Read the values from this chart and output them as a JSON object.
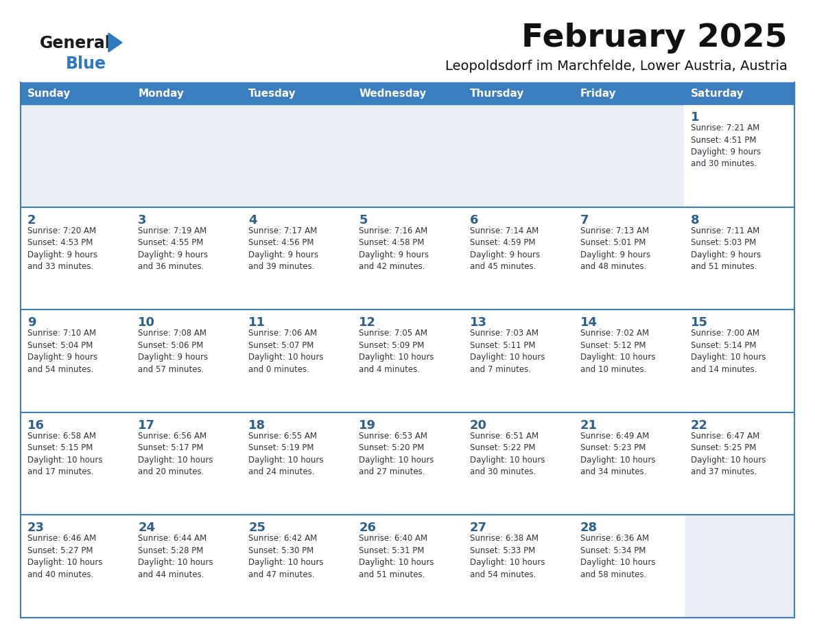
{
  "title": "February 2025",
  "subtitle": "Leopoldsdorf im Marchfelde, Lower Austria, Austria",
  "days_of_week": [
    "Sunday",
    "Monday",
    "Tuesday",
    "Wednesday",
    "Thursday",
    "Friday",
    "Saturday"
  ],
  "header_bg": "#3a7ebf",
  "header_text": "#ffffff",
  "row_bg_light": "#e8eef4",
  "row_bg_white": "#ffffff",
  "cell_border_color": "#3a7ebf",
  "day_num_color": "#2c5f8a",
  "info_color": "#333333",
  "title_color": "#111111",
  "subtitle_color": "#111111",
  "logo_general_color": "#1a1a1a",
  "logo_blue_color": "#2e7abf",
  "calendar_data": [
    [
      null,
      null,
      null,
      null,
      null,
      null,
      {
        "day": "1",
        "sunrise": "7:21 AM",
        "sunset": "4:51 PM",
        "daylight": "9 hours\nand 30 minutes."
      }
    ],
    [
      {
        "day": "2",
        "sunrise": "7:20 AM",
        "sunset": "4:53 PM",
        "daylight": "9 hours\nand 33 minutes."
      },
      {
        "day": "3",
        "sunrise": "7:19 AM",
        "sunset": "4:55 PM",
        "daylight": "9 hours\nand 36 minutes."
      },
      {
        "day": "4",
        "sunrise": "7:17 AM",
        "sunset": "4:56 PM",
        "daylight": "9 hours\nand 39 minutes."
      },
      {
        "day": "5",
        "sunrise": "7:16 AM",
        "sunset": "4:58 PM",
        "daylight": "9 hours\nand 42 minutes."
      },
      {
        "day": "6",
        "sunrise": "7:14 AM",
        "sunset": "4:59 PM",
        "daylight": "9 hours\nand 45 minutes."
      },
      {
        "day": "7",
        "sunrise": "7:13 AM",
        "sunset": "5:01 PM",
        "daylight": "9 hours\nand 48 minutes."
      },
      {
        "day": "8",
        "sunrise": "7:11 AM",
        "sunset": "5:03 PM",
        "daylight": "9 hours\nand 51 minutes."
      }
    ],
    [
      {
        "day": "9",
        "sunrise": "7:10 AM",
        "sunset": "5:04 PM",
        "daylight": "9 hours\nand 54 minutes."
      },
      {
        "day": "10",
        "sunrise": "7:08 AM",
        "sunset": "5:06 PM",
        "daylight": "9 hours\nand 57 minutes."
      },
      {
        "day": "11",
        "sunrise": "7:06 AM",
        "sunset": "5:07 PM",
        "daylight": "10 hours\nand 0 minutes."
      },
      {
        "day": "12",
        "sunrise": "7:05 AM",
        "sunset": "5:09 PM",
        "daylight": "10 hours\nand 4 minutes."
      },
      {
        "day": "13",
        "sunrise": "7:03 AM",
        "sunset": "5:11 PM",
        "daylight": "10 hours\nand 7 minutes."
      },
      {
        "day": "14",
        "sunrise": "7:02 AM",
        "sunset": "5:12 PM",
        "daylight": "10 hours\nand 10 minutes."
      },
      {
        "day": "15",
        "sunrise": "7:00 AM",
        "sunset": "5:14 PM",
        "daylight": "10 hours\nand 14 minutes."
      }
    ],
    [
      {
        "day": "16",
        "sunrise": "6:58 AM",
        "sunset": "5:15 PM",
        "daylight": "10 hours\nand 17 minutes."
      },
      {
        "day": "17",
        "sunrise": "6:56 AM",
        "sunset": "5:17 PM",
        "daylight": "10 hours\nand 20 minutes."
      },
      {
        "day": "18",
        "sunrise": "6:55 AM",
        "sunset": "5:19 PM",
        "daylight": "10 hours\nand 24 minutes."
      },
      {
        "day": "19",
        "sunrise": "6:53 AM",
        "sunset": "5:20 PM",
        "daylight": "10 hours\nand 27 minutes."
      },
      {
        "day": "20",
        "sunrise": "6:51 AM",
        "sunset": "5:22 PM",
        "daylight": "10 hours\nand 30 minutes."
      },
      {
        "day": "21",
        "sunrise": "6:49 AM",
        "sunset": "5:23 PM",
        "daylight": "10 hours\nand 34 minutes."
      },
      {
        "day": "22",
        "sunrise": "6:47 AM",
        "sunset": "5:25 PM",
        "daylight": "10 hours\nand 37 minutes."
      }
    ],
    [
      {
        "day": "23",
        "sunrise": "6:46 AM",
        "sunset": "5:27 PM",
        "daylight": "10 hours\nand 40 minutes."
      },
      {
        "day": "24",
        "sunrise": "6:44 AM",
        "sunset": "5:28 PM",
        "daylight": "10 hours\nand 44 minutes."
      },
      {
        "day": "25",
        "sunrise": "6:42 AM",
        "sunset": "5:30 PM",
        "daylight": "10 hours\nand 47 minutes."
      },
      {
        "day": "26",
        "sunrise": "6:40 AM",
        "sunset": "5:31 PM",
        "daylight": "10 hours\nand 51 minutes."
      },
      {
        "day": "27",
        "sunrise": "6:38 AM",
        "sunset": "5:33 PM",
        "daylight": "10 hours\nand 54 minutes."
      },
      {
        "day": "28",
        "sunrise": "6:36 AM",
        "sunset": "5:34 PM",
        "daylight": "10 hours\nand 58 minutes."
      },
      null
    ]
  ]
}
